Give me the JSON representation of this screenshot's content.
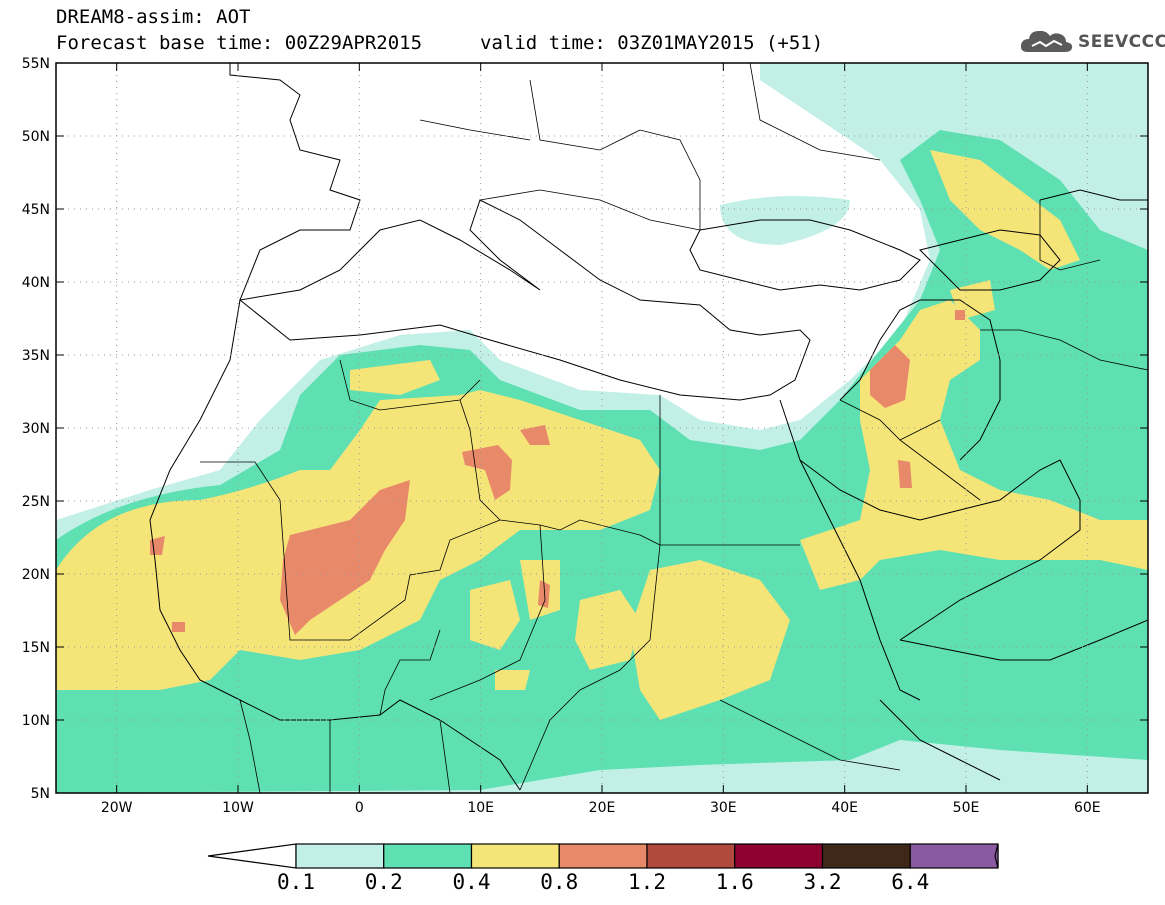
{
  "header": {
    "title_line1": "DREAM8-assim: AOT",
    "title_line2_left": "Forecast base time: 00Z29APR2015",
    "title_line2_right": "valid time: 03Z01MAY2015 (+51)",
    "logo_text": "SEEVCCC",
    "logo_icon": "cloud-icon"
  },
  "map": {
    "lon_range": [
      -25,
      65
    ],
    "lat_range": [
      5,
      55
    ],
    "lat_ticks": [
      "55N",
      "50N",
      "45N",
      "40N",
      "35N",
      "30N",
      "25N",
      "20N",
      "15N",
      "10N",
      "5N"
    ],
    "lon_ticks": [
      "20W",
      "10W",
      "0",
      "10E",
      "20E",
      "30E",
      "40E",
      "50E",
      "60E"
    ],
    "grid": true
  },
  "colorbar": {
    "labels": [
      "0.1",
      "0.2",
      "0.4",
      "0.8",
      "1.2",
      "1.6",
      "3.2",
      "6.4"
    ],
    "colors": [
      "#ffffff",
      "#c2f0e6",
      "#5ee0b2",
      "#f5e579",
      "#e8896a",
      "#b04a3c",
      "#8e0030",
      "#402818",
      "#8a5aa0"
    ]
  }
}
